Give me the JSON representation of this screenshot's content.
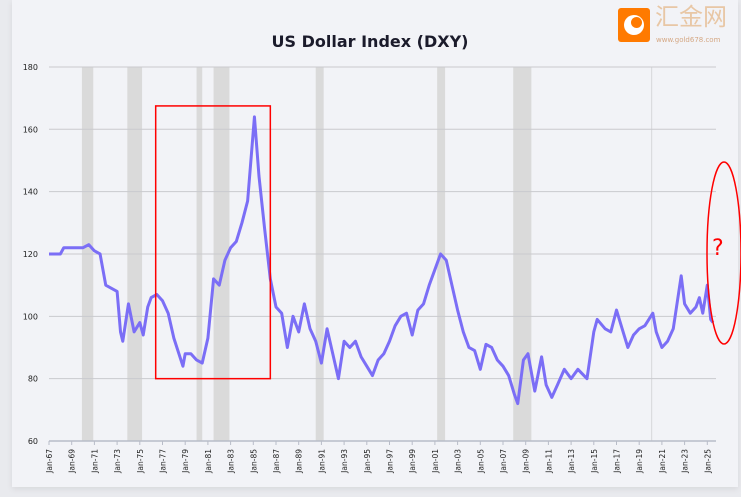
{
  "chart_data": {
    "type": "line",
    "title": "US Dollar Index (DXY)",
    "xlabel": "",
    "ylabel": "",
    "ylim": [
      60,
      180
    ],
    "yticks": [
      60,
      80,
      100,
      120,
      140,
      160,
      180
    ],
    "xlim": [
      1967,
      2025.6
    ],
    "xtick_labels": [
      "Jan-67",
      "Jan-69",
      "Jan-71",
      "Jan-73",
      "Jan-75",
      "Jan-77",
      "Jan-79",
      "Jan-81",
      "Jan-83",
      "Jan-85",
      "Jan-87",
      "Jan-89",
      "Jan-91",
      "Jan-93",
      "Jan-95",
      "Jan-97",
      "Jan-99",
      "Jan-01",
      "Jan-03",
      "Jan-05",
      "Jan-07",
      "Jan-09",
      "Jan-11",
      "Jan-13",
      "Jan-15",
      "Jan-17",
      "Jan-19",
      "Jan-21",
      "Jan-23",
      "Jan-25"
    ],
    "grid": "horizontal",
    "line_color": "#7b6ef6",
    "recession_color": "#dadada",
    "recessions": [
      [
        1969.9,
        1970.9
      ],
      [
        1973.9,
        1975.2
      ],
      [
        1980.0,
        1980.5
      ],
      [
        1981.5,
        1982.9
      ],
      [
        1990.5,
        1991.2
      ],
      [
        2001.2,
        2001.9
      ],
      [
        2007.9,
        2009.5
      ]
    ],
    "reference_line_year": 2020.1,
    "series": [
      {
        "x": [
          1967,
          1968,
          1968.3,
          1970,
          1970.5,
          1971,
          1971.5,
          1972,
          1972.5,
          1973,
          1973.3,
          1973.5,
          1974,
          1974.5,
          1975,
          1975.3,
          1975.7,
          1976,
          1976.5,
          1977,
          1977.5,
          1978,
          1978.8,
          1979,
          1979.5,
          1980,
          1980.5,
          1981,
          1981.5,
          1982,
          1982.5,
          1983,
          1983.5,
          1984,
          1984.5,
          1985.1,
          1985.5,
          1986,
          1986.5,
          1987,
          1987.5,
          1988,
          1988.5,
          1989,
          1989.5,
          1990,
          1990.5,
          1991,
          1991.5,
          1992,
          1992.5,
          1993,
          1993.5,
          1994,
          1994.5,
          1995,
          1995.5,
          1996,
          1996.5,
          1997,
          1997.5,
          1998,
          1998.5,
          1999,
          1999.5,
          2000,
          2000.5,
          2001,
          2001.5,
          2002,
          2002.5,
          2003,
          2003.5,
          2004,
          2004.5,
          2005,
          2005.5,
          2006,
          2006.5,
          2007,
          2007.5,
          2008,
          2008.3,
          2008.8,
          2009.2,
          2009.8,
          2010.4,
          2010.8,
          2011.3,
          2011.8,
          2012.4,
          2013,
          2013.6,
          2014.4,
          2015,
          2015.3,
          2016,
          2016.5,
          2017,
          2017.5,
          2018,
          2018.5,
          2019,
          2019.5,
          2020.2,
          2020.5,
          2021,
          2021.5,
          2022,
          2022.7,
          2023,
          2023.5,
          2024,
          2024.3,
          2024.6,
          2025,
          2025.3,
          2025.5
        ],
        "values": [
          120,
          120,
          122,
          122,
          123,
          121,
          120,
          110,
          109,
          108,
          95,
          92,
          104,
          95,
          98,
          94,
          103,
          106,
          107,
          105,
          101,
          93,
          84,
          88,
          88,
          86,
          85,
          93,
          112,
          110,
          118,
          122,
          124,
          130,
          137,
          164,
          145,
          128,
          112,
          103,
          101,
          90,
          100,
          95,
          104,
          96,
          92,
          85,
          96,
          88,
          80,
          92,
          90,
          92,
          87,
          84,
          81,
          86,
          88,
          92,
          97,
          100,
          101,
          94,
          102,
          104,
          110,
          115,
          120,
          118,
          110,
          102,
          95,
          90,
          89,
          83,
          91,
          90,
          86,
          84,
          81,
          75,
          72,
          86,
          88,
          76,
          87,
          78,
          74,
          78,
          83,
          80,
          83,
          80,
          95,
          99,
          96,
          95,
          102,
          96,
          90,
          94,
          96,
          97,
          101,
          95,
          90,
          92,
          96,
          113,
          104,
          101,
          103,
          106,
          101,
          110,
          99,
          98
        ]
      }
    ]
  },
  "annotations": {
    "highlight_box": {
      "from_year": 1976.4,
      "to_year": 1986.5,
      "from_value": 80,
      "to_value": 167.5,
      "color": "#ff0000"
    },
    "ellipse_color": "#ff0000",
    "question_mark": "?"
  },
  "watermark": {
    "brand": "汇金网",
    "url": "www.gold678.com",
    "color": "#ff7a00"
  }
}
